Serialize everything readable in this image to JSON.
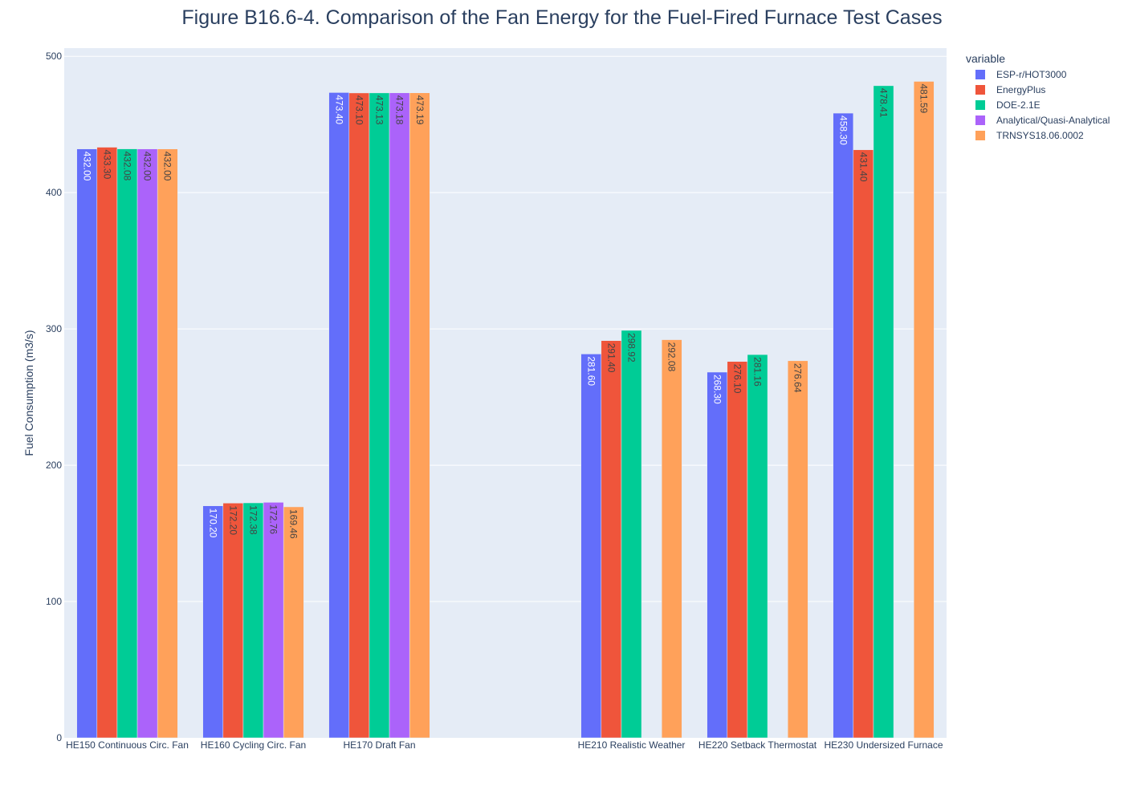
{
  "chart_data": {
    "type": "bar",
    "title": "Figure B16.6-4. Comparison of the Fan Energy for the Fuel-Fired Furnace Test Cases",
    "xlabel": "",
    "ylabel": "Fuel Consumption (m3/s)",
    "ylim": [
      0,
      506
    ],
    "yticks": [
      0,
      100,
      200,
      300,
      400,
      500
    ],
    "grid": true,
    "legend_title": "variable",
    "legend_position": "top-right",
    "categories": [
      "HE150 Continuous Circ. Fan",
      "HE160 Cycling Circ. Fan",
      "HE170 Draft Fan",
      "",
      "HE210 Realistic Weather",
      "HE220 Setback Thermostat",
      "HE230 Undersized Furnace"
    ],
    "series": [
      {
        "name": "ESP-r/HOT3000",
        "color": "#636efa",
        "label_color": "#ffffff",
        "values": [
          432.0,
          170.2,
          473.4,
          null,
          281.6,
          268.3,
          458.3
        ],
        "labels": [
          "432.00",
          "170.20",
          "473.40",
          null,
          "281.60",
          "268.30",
          "458.30"
        ]
      },
      {
        "name": "EnergyPlus",
        "color": "#EF553B",
        "label_color": "#444444",
        "values": [
          433.3,
          172.2,
          473.1,
          null,
          291.4,
          276.1,
          431.4
        ],
        "labels": [
          "433.30",
          "172.20",
          "473.10",
          null,
          "291.40",
          "276.10",
          "431.40"
        ]
      },
      {
        "name": "DOE-2.1E",
        "color": "#00cc96",
        "label_color": "#444444",
        "values": [
          432.08,
          172.38,
          473.13,
          null,
          298.92,
          281.16,
          478.41
        ],
        "labels": [
          "432.08",
          "172.38",
          "473.13",
          null,
          "298.92",
          "281.16",
          "478.41"
        ]
      },
      {
        "name": "Analytical/Quasi-Analytical",
        "color": "#ab63fa",
        "label_color": "#444444",
        "values": [
          432.0,
          172.76,
          473.18,
          null,
          null,
          null,
          null
        ],
        "labels": [
          "432.00",
          "172.76",
          "473.18",
          null,
          null,
          null,
          null
        ]
      },
      {
        "name": "TRNSYS18.06.0002",
        "color": "#FFA15A",
        "label_color": "#444444",
        "values": [
          432.0,
          169.46,
          473.19,
          null,
          292.08,
          276.64,
          481.59
        ],
        "labels": [
          "432.00",
          "169.46",
          "473.19",
          null,
          "292.08",
          "276.64",
          "481.59"
        ]
      }
    ]
  }
}
